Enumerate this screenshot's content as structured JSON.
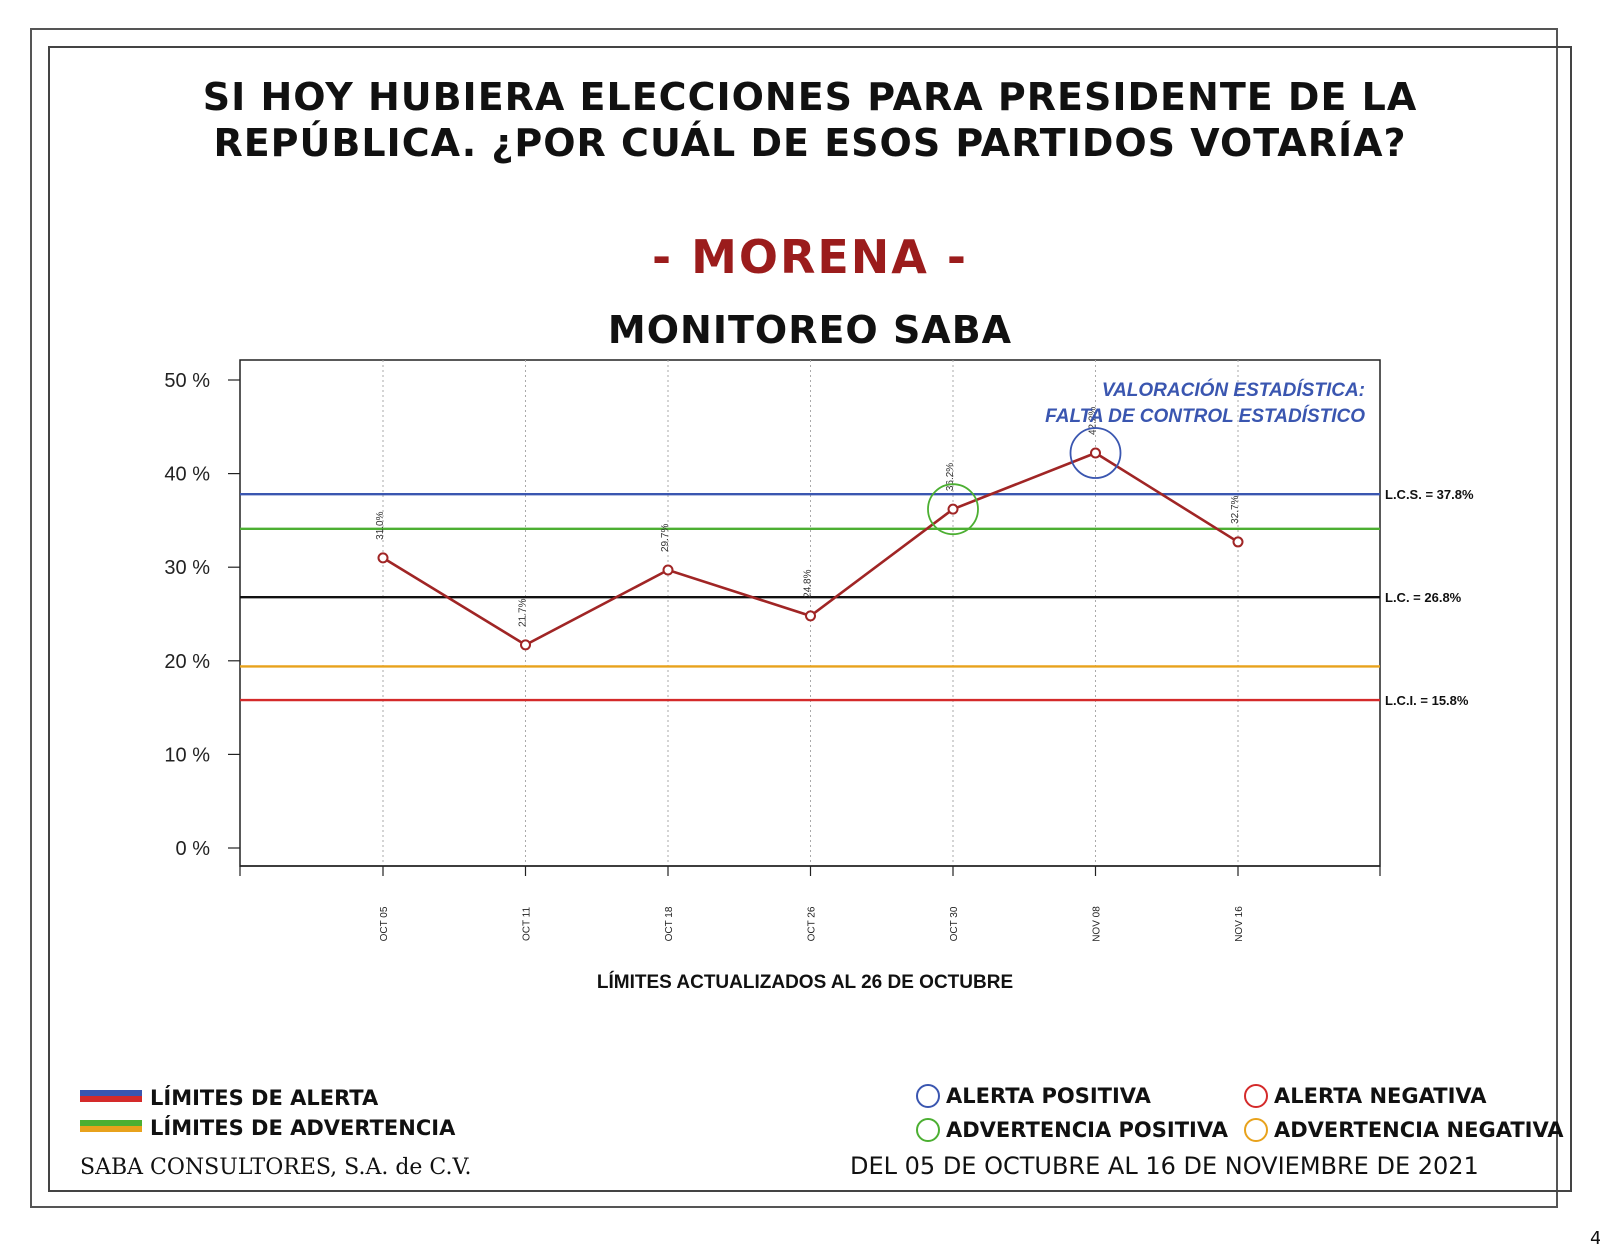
{
  "header": {
    "title_line1": "SI HOY HUBIERA ELECCIONES PARA PRESIDENTE DE LA",
    "title_line2": "REPÚBLICA. ¿POR CUÁL DE ESOS PARTIDOS VOTARÍA?",
    "party": "- MORENA -",
    "party_color": "#9b1c1c"
  },
  "chart_data": {
    "type": "line",
    "title": "MONITOREO SABA",
    "categories": [
      "OCT 05",
      "OCT 11",
      "OCT 18",
      "OCT 26",
      "OCT 30",
      "NOV 08",
      "NOV 16"
    ],
    "series": [
      {
        "color": "#a02525",
        "values": [
          31.0,
          21.7,
          29.7,
          24.8,
          36.2,
          42.2,
          32.7
        ],
        "data_labels": [
          "31.0%",
          "21.7%",
          "29.7%",
          "24.8%",
          "36.2%",
          "42.2%",
          "32.7%"
        ]
      }
    ],
    "ylim": [
      0,
      50
    ],
    "yticks": [
      0,
      10,
      20,
      30,
      40,
      50
    ],
    "ytick_labels": [
      "0 %",
      "10 %",
      "20 %",
      "30 %",
      "40 %",
      "50 %"
    ],
    "grid": "vertical dotted",
    "reference_lines": [
      {
        "value": 37.8,
        "color": "#3a56b0",
        "label": "L.C.S. =  37.8%"
      },
      {
        "value": 34.1,
        "color": "#4caf32",
        "label": ""
      },
      {
        "value": 26.8,
        "color": "#111111",
        "label": "L.C. =  26.8%"
      },
      {
        "value": 19.4,
        "color": "#e8a21c",
        "label": ""
      },
      {
        "value": 15.8,
        "color": "#d42a2a",
        "label": "L.C.I. =  15.8%"
      }
    ],
    "highlights": [
      {
        "index": 4,
        "color": "#4caf32"
      },
      {
        "index": 5,
        "color": "#3a56b0"
      }
    ],
    "annotation_line1": "VALORACIÓN ESTADÍSTICA:",
    "annotation_line2": "FALTA DE CONTROL ESTADÍSTICO",
    "annotation_color": "#3a56b0",
    "note": "LÍMITES ACTUALIZADOS AL  26  DE  OCTUBRE"
  },
  "legend": {
    "alert_limits": "LÍMITES DE ALERTA",
    "warning_limits": "LÍMITES DE ADVERTENCIA",
    "positive_alert": "ALERTA POSITIVA",
    "negative_alert": "ALERTA NEGATIVA",
    "positive_warning": "ADVERTENCIA POSITIVA",
    "negative_warning": "ADVERTENCIA NEGATIVA",
    "colors": {
      "alert_blue": "#3a56b0",
      "alert_red": "#d42a2a",
      "warning_green": "#4caf32",
      "warning_orange": "#e8a21c"
    }
  },
  "footer": {
    "company": "SABA CONSULTORES, S.A. de C.V.",
    "date_range": "DEL 05 DE OCTUBRE AL 16 DE NOVIEMBRE DE 2021",
    "page_number": "4"
  }
}
